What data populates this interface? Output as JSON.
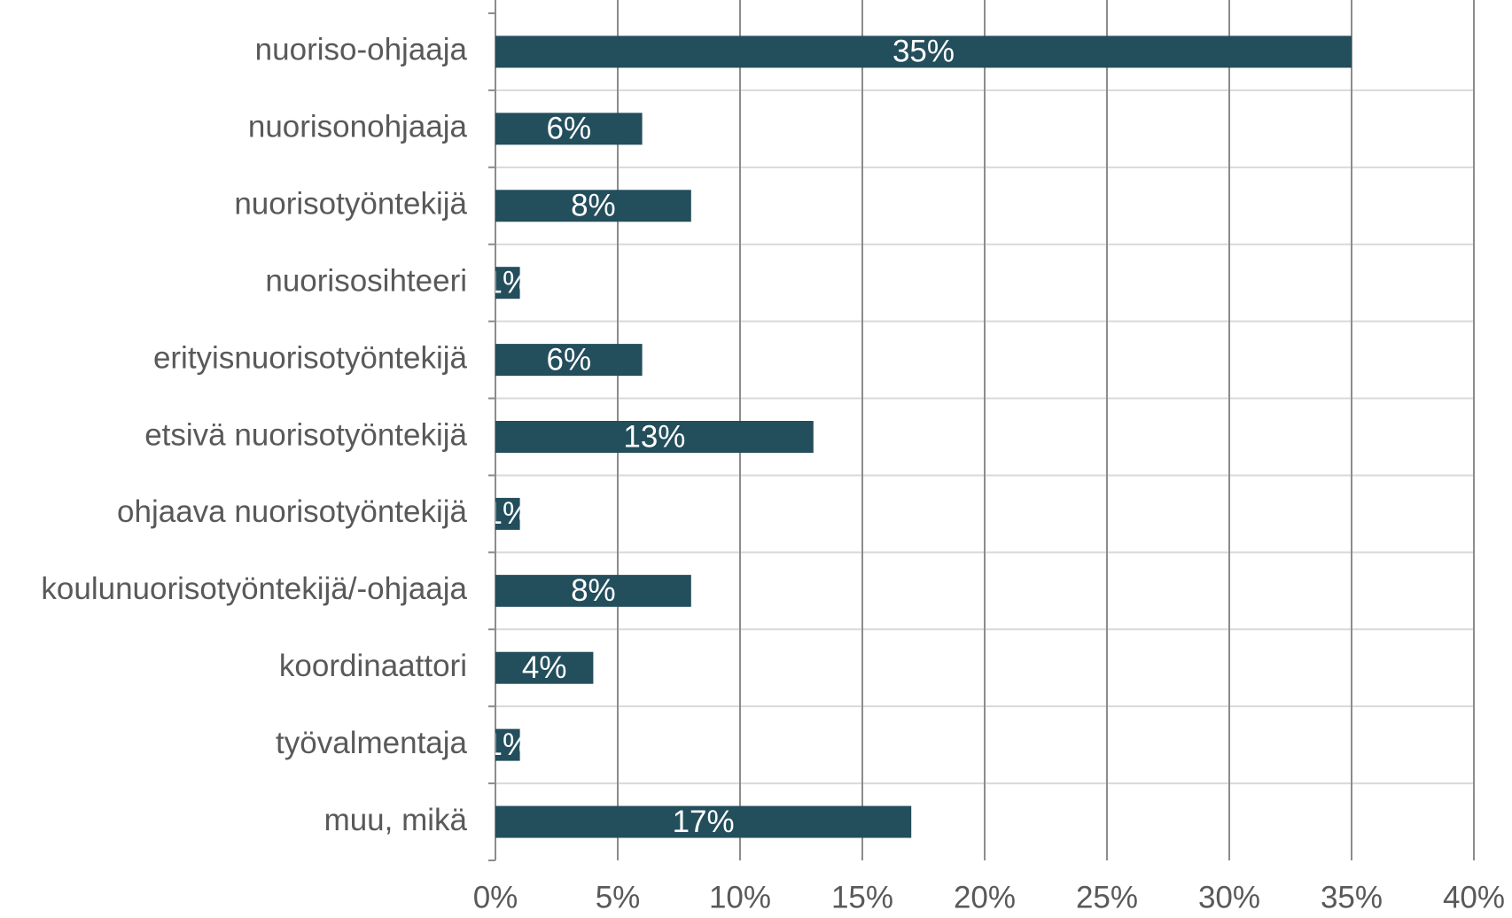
{
  "chart_data": {
    "type": "bar",
    "orientation": "horizontal",
    "categories": [
      "nuoriso-ohjaaja",
      "nuorisonohjaaja",
      "nuorisotyöntekijä",
      "nuorisosihteeri",
      "erityisnuorisotyöntekijä",
      "etsivä nuorisotyöntekijä",
      "ohjaava nuorisotyöntekijä",
      "koulunuorisotyöntekijä/-ohjaaja",
      "koordinaattori",
      "työvalmentaja",
      "muu, mikä"
    ],
    "values": [
      35,
      6,
      8,
      1,
      6,
      13,
      1,
      8,
      4,
      1,
      17
    ],
    "value_labels": [
      "35%",
      "6%",
      "8%",
      "1%",
      "6%",
      "13%",
      "1%",
      "8%",
      "4%",
      "1%",
      "17%"
    ],
    "color": "#234e5c",
    "xlim": [
      0,
      40
    ],
    "xticks": [
      {
        "value": 0,
        "label": "0%"
      },
      {
        "value": 5,
        "label": "5%"
      },
      {
        "value": 10,
        "label": "10%"
      },
      {
        "value": 15,
        "label": "15%"
      },
      {
        "value": 20,
        "label": "20%"
      },
      {
        "value": 25,
        "label": "25%"
      },
      {
        "value": 30,
        "label": "30%"
      },
      {
        "value": 35,
        "label": "35%"
      },
      {
        "value": 40,
        "label": "40%"
      }
    ],
    "grid": true
  }
}
